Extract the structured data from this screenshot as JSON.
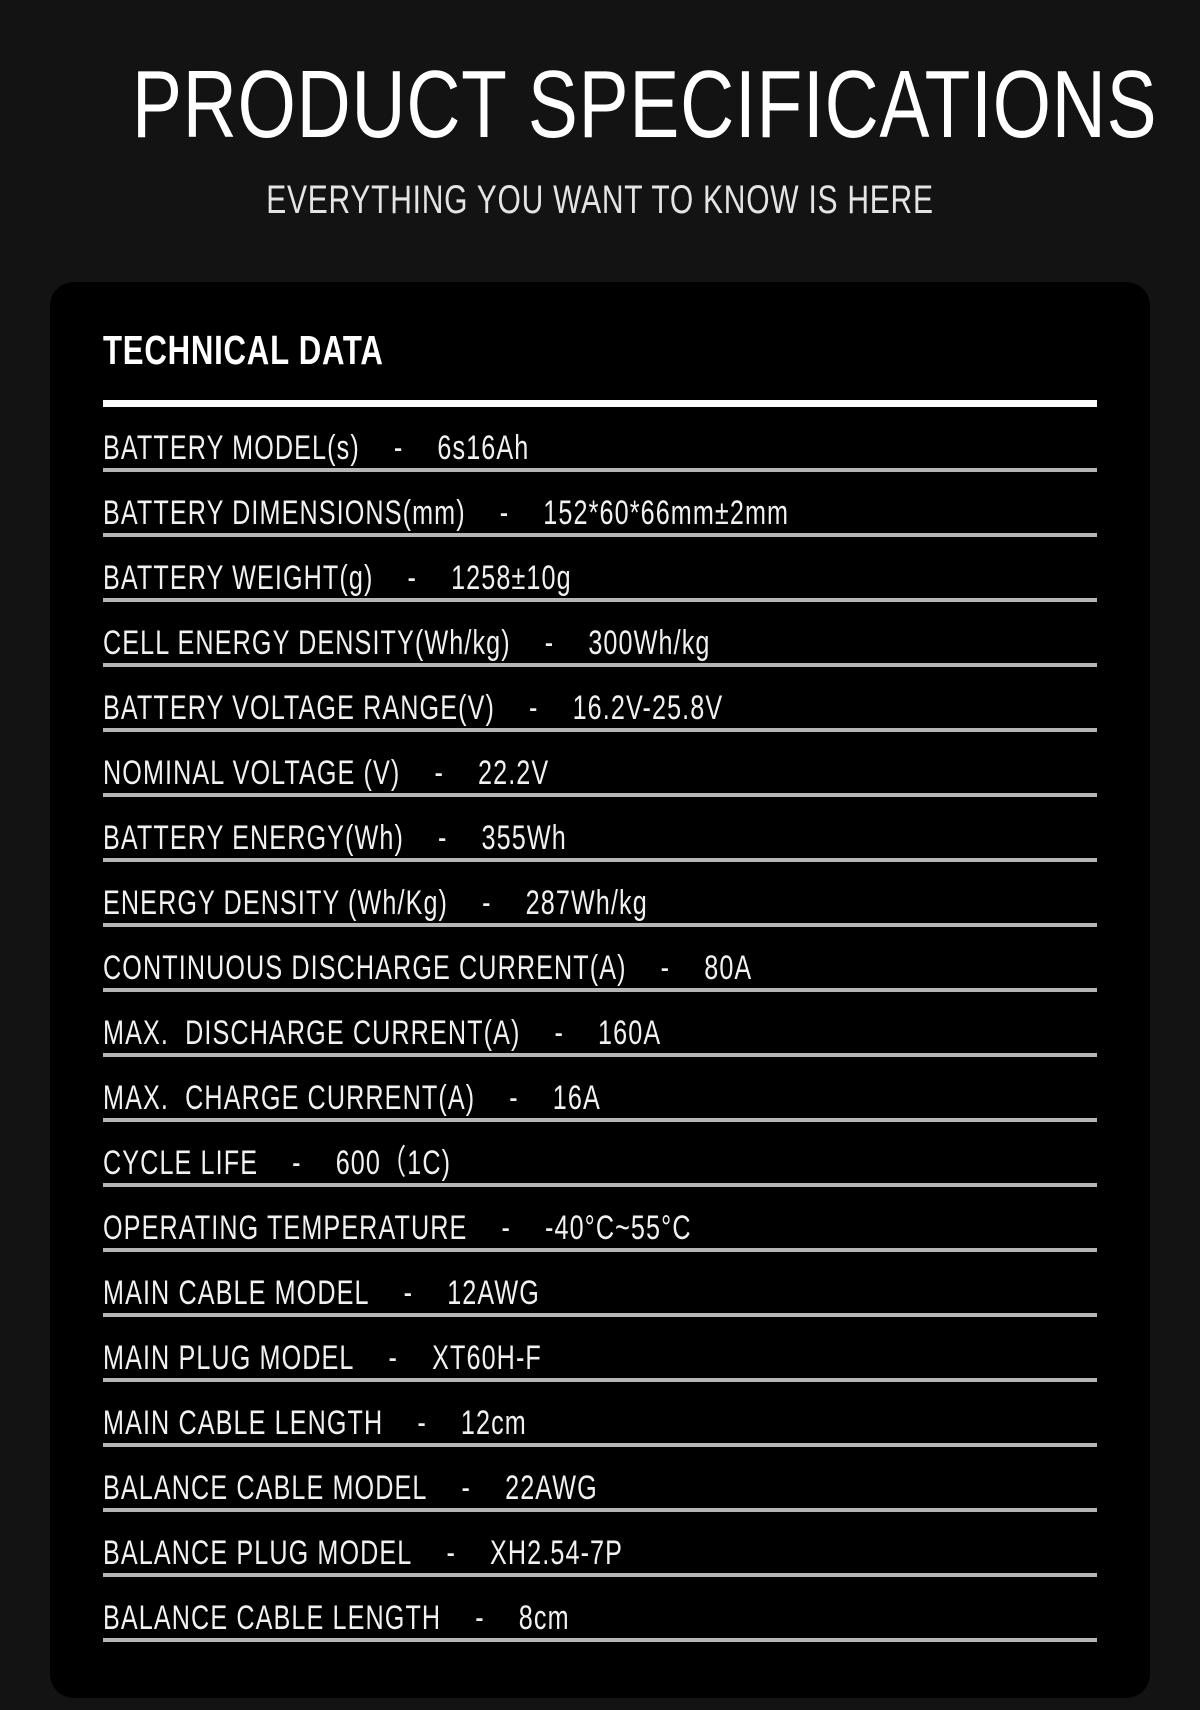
{
  "header": {
    "title": "PRODUCT SPECIFICATIONS",
    "subtitle": "EVERYTHING YOU WANT TO KNOW IS HERE"
  },
  "panel": {
    "heading": "TECHNICAL DATA",
    "dash": "-",
    "rows": [
      {
        "label": "BATTERY MODEL(s)",
        "value": "6s16Ah"
      },
      {
        "label": "BATTERY DIMENSIONS(mm)",
        "value": "152*60*66mm±2mm"
      },
      {
        "label": "BATTERY WEIGHT(g)",
        "value": "1258±10g"
      },
      {
        "label": "CELL ENERGY DENSITY(Wh/kg)",
        "value": "300Wh/kg"
      },
      {
        "label": "BATTERY VOLTAGE RANGE(V)",
        "value": "16.2V-25.8V"
      },
      {
        "label": "NOMINAL VOLTAGE (V)",
        "value": "22.2V"
      },
      {
        "label": "BATTERY ENERGY(Wh)",
        "value": "355Wh"
      },
      {
        "label": "ENERGY DENSITY (Wh/Kg)",
        "value": "287Wh/kg"
      },
      {
        "label": "CONTINUOUS DISCHARGE CURRENT(A)",
        "value": "80A"
      },
      {
        "label": "MAX.  DISCHARGE CURRENT(A)",
        "value": "160A"
      },
      {
        "label": "MAX.  CHARGE CURRENT(A)",
        "value": "16A"
      },
      {
        "label": "CYCLE LIFE",
        "value": "600（1C)"
      },
      {
        "label": "OPERATING TEMPERATURE",
        "value": "-40°C~55°C"
      },
      {
        "label": "MAIN CABLE MODEL",
        "value": "12AWG"
      },
      {
        "label": "MAIN PLUG MODEL",
        "value": "XT60H-F"
      },
      {
        "label": "MAIN CABLE LENGTH",
        "value": "12cm"
      },
      {
        "label": "BALANCE CABLE MODEL",
        "value": "22AWG"
      },
      {
        "label": "BALANCE PLUG MODEL",
        "value": "XH2.54-7P"
      },
      {
        "label": "BALANCE CABLE LENGTH",
        "value": "8cm"
      }
    ]
  }
}
